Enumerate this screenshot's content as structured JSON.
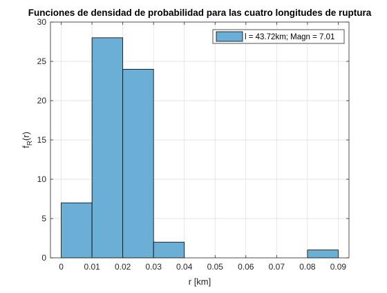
{
  "chart_data": {
    "type": "bar",
    "title": "Funciones de densidad de probabilidad para las cuatro longitudes de ruptura",
    "xlabel": "r [km]",
    "ylabel_main": "f",
    "ylabel_sub": "R",
    "ylabel_arg": "(r)",
    "bins": [
      {
        "x0": 0.0,
        "x1": 0.01,
        "value": 7
      },
      {
        "x0": 0.01,
        "x1": 0.02,
        "value": 28
      },
      {
        "x0": 0.02,
        "x1": 0.03,
        "value": 24
      },
      {
        "x0": 0.03,
        "x1": 0.04,
        "value": 2
      },
      {
        "x0": 0.04,
        "x1": 0.05,
        "value": 0
      },
      {
        "x0": 0.05,
        "x1": 0.06,
        "value": 0
      },
      {
        "x0": 0.06,
        "x1": 0.07,
        "value": 0
      },
      {
        "x0": 0.07,
        "x1": 0.08,
        "value": 0
      },
      {
        "x0": 0.08,
        "x1": 0.09,
        "value": 1
      }
    ],
    "xlim": [
      -0.0035,
      0.0935
    ],
    "ylim": [
      0,
      30
    ],
    "xticks": [
      0,
      0.01,
      0.02,
      0.03,
      0.04,
      0.05,
      0.06,
      0.07,
      0.08,
      0.09
    ],
    "xtick_labels": [
      "0",
      "0.01",
      "0.02",
      "0.03",
      "0.04",
      "0.05",
      "0.06",
      "0.07",
      "0.08",
      "0.09"
    ],
    "yticks": [
      0,
      5,
      10,
      15,
      20,
      25,
      30
    ],
    "ytick_labels": [
      "0",
      "5",
      "10",
      "15",
      "20",
      "25",
      "30"
    ],
    "grid": true,
    "legend": {
      "position": "top-right",
      "entries": [
        {
          "label": "l = 43.72km; Magn = 7.01"
        }
      ]
    },
    "colors": {
      "bar_fill": "#6baed6",
      "bar_edge": "#000000",
      "grid": "#dcdcdc",
      "axis": "#262626"
    }
  }
}
